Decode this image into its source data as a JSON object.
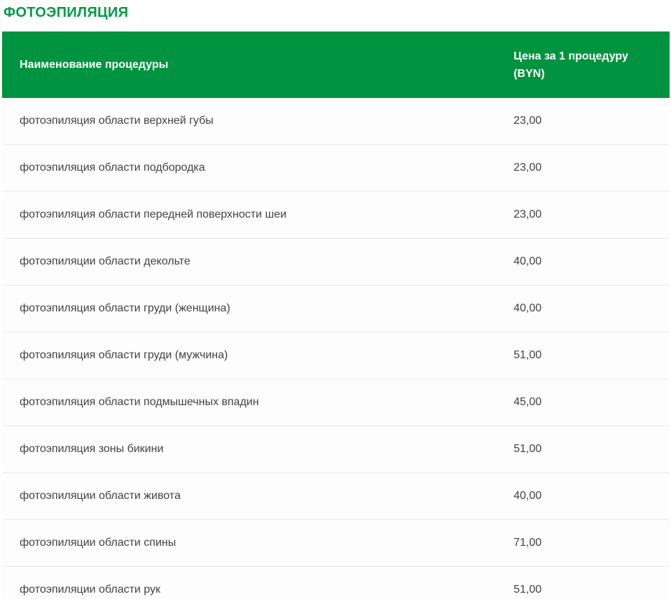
{
  "title": "ФОТОЭПИЛЯЦИЯ",
  "colors": {
    "accent_green": "#009340",
    "title_green": "#009A46",
    "header_text": "#ffffff",
    "row_text": "#424242",
    "divider": "#ececec"
  },
  "table": {
    "columns": [
      "Наименование процедуры",
      "Цена за 1 процедуру (BYN)"
    ],
    "rows": [
      {
        "name": "фотоэпиляция области верхней губы",
        "price": "23,00"
      },
      {
        "name": "фотоэпиляция области подбородка",
        "price": "23,00"
      },
      {
        "name": "фотоэпиляция области передней поверхности шеи",
        "price": "23,00"
      },
      {
        "name": "фотоэпиляции области декольте",
        "price": "40,00"
      },
      {
        "name": "фотоэпиляция области груди (женщина)",
        "price": "40,00"
      },
      {
        "name": "фотоэпиляция области груди (мужчина)",
        "price": "51,00"
      },
      {
        "name": "фотоэпиляция области подмышечных впадин",
        "price": "45,00"
      },
      {
        "name": "фотоэпиляция зоны бикини",
        "price": "51,00"
      },
      {
        "name": "фотоэпиляции области живота",
        "price": "40,00"
      },
      {
        "name": "фотоэпиляции области спины",
        "price": "71,00"
      },
      {
        "name": "фотоэпиляции области рук",
        "price": "51,00"
      }
    ]
  }
}
